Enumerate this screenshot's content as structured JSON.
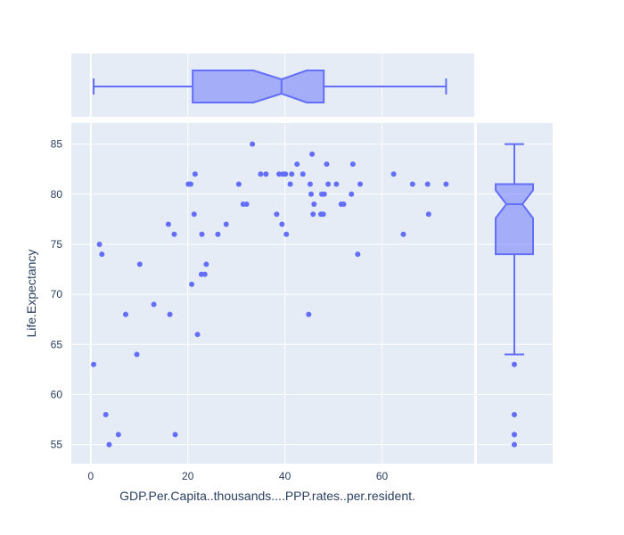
{
  "chart_data": {
    "type": "scatter",
    "xlabel": "GDP.Per.Capita..thousands....PPP.rates..per.resident.",
    "ylabel": "Life.Expectancy",
    "xlim": [
      -4,
      79
    ],
    "ylim": [
      53.1,
      87.1
    ],
    "x_ticks": [
      0,
      20,
      40,
      60
    ],
    "y_ticks": [
      55,
      60,
      65,
      70,
      75,
      80,
      85
    ],
    "grid": true,
    "marginal_x": "box",
    "marginal_y": "box",
    "colors": {
      "marker": "#636efa",
      "box_fill": "rgba(99,110,250,0.5)",
      "plot_bg": "#e5ecf6",
      "grid": "#ffffff",
      "text": "#2a3f5f"
    },
    "points": [
      [
        0.6,
        63
      ],
      [
        1.8,
        75
      ],
      [
        2.3,
        74
      ],
      [
        3.1,
        58
      ],
      [
        3.8,
        55
      ],
      [
        5.7,
        56
      ],
      [
        7.2,
        68
      ],
      [
        9.5,
        64
      ],
      [
        10.1,
        73
      ],
      [
        13.0,
        69
      ],
      [
        16.0,
        77
      ],
      [
        16.3,
        68
      ],
      [
        17.2,
        76
      ],
      [
        17.4,
        56
      ],
      [
        20.1,
        81
      ],
      [
        20.6,
        81
      ],
      [
        20.8,
        71
      ],
      [
        21.3,
        78
      ],
      [
        21.5,
        82
      ],
      [
        22.0,
        66
      ],
      [
        22.8,
        72
      ],
      [
        22.9,
        76
      ],
      [
        23.5,
        72
      ],
      [
        23.8,
        73
      ],
      [
        26.2,
        76
      ],
      [
        27.9,
        77
      ],
      [
        30.5,
        81
      ],
      [
        31.4,
        79
      ],
      [
        32.1,
        79
      ],
      [
        33.3,
        85
      ],
      [
        35.0,
        82
      ],
      [
        36.1,
        82
      ],
      [
        38.3,
        78
      ],
      [
        38.8,
        82
      ],
      [
        39.4,
        77
      ],
      [
        39.6,
        82
      ],
      [
        40.1,
        82
      ],
      [
        40.3,
        76
      ],
      [
        41.1,
        81
      ],
      [
        41.4,
        82
      ],
      [
        42.5,
        83
      ],
      [
        43.7,
        82
      ],
      [
        44.9,
        68
      ],
      [
        45.2,
        81
      ],
      [
        45.4,
        80
      ],
      [
        45.6,
        84
      ],
      [
        45.8,
        78
      ],
      [
        46.0,
        79
      ],
      [
        47.4,
        78
      ],
      [
        47.6,
        80
      ],
      [
        47.9,
        78
      ],
      [
        48.1,
        80
      ],
      [
        48.6,
        83
      ],
      [
        48.9,
        81
      ],
      [
        50.6,
        81
      ],
      [
        51.6,
        79
      ],
      [
        52.1,
        79
      ],
      [
        53.7,
        80
      ],
      [
        54.0,
        83
      ],
      [
        55.0,
        74
      ],
      [
        55.5,
        81
      ],
      [
        62.4,
        82
      ],
      [
        64.4,
        76
      ],
      [
        66.3,
        81
      ],
      [
        69.4,
        81
      ],
      [
        69.6,
        78
      ],
      [
        73.2,
        81
      ]
    ],
    "x_box": {
      "min": 0.6,
      "q1": 21.0,
      "median": 39.3,
      "q3": 48.0,
      "max": 73.2,
      "notch_low": 33.5,
      "notch_high": 44.5
    },
    "y_box": {
      "min": 64,
      "q1": 74,
      "median": 79,
      "q3": 81,
      "max": 85,
      "notch_low": 77.6,
      "notch_high": 80.4,
      "outliers": [
        63,
        58,
        56,
        56,
        55
      ]
    }
  }
}
